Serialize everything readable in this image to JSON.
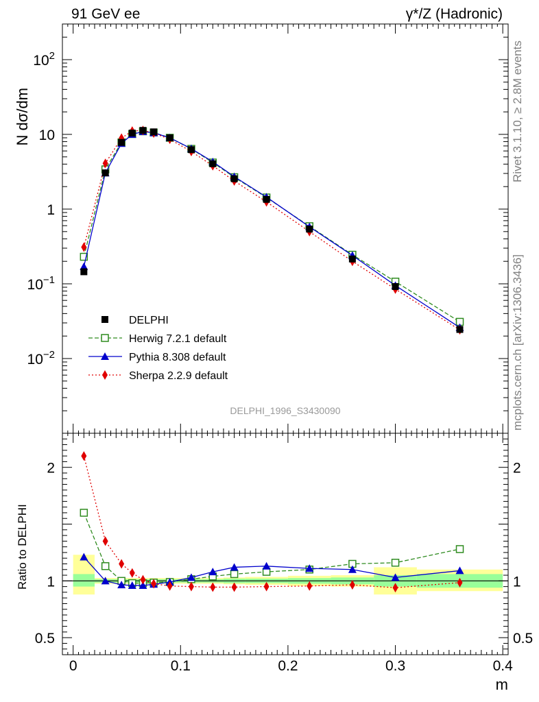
{
  "header": {
    "left": "91 GeV ee",
    "right": "γ*/Z (Hadronic)"
  },
  "side_text": {
    "rivet": "Rivet 3.1.10, ≥ 2.8M events",
    "mcplots": "mcplots.cern.ch [arXiv:1306.3436]"
  },
  "chart_data": {
    "type": "scatter",
    "analysis_label": "DELPHI_1996_S3430090",
    "xlabel": "m",
    "main": {
      "ylabel": "N dσ/dm",
      "yscale": "log",
      "ylim": [
        0.001,
        300
      ],
      "yticks": [
        {
          "value": 0.01,
          "base": "10",
          "exp": "−2"
        },
        {
          "value": 0.1,
          "base": "10",
          "exp": "−1"
        },
        {
          "value": 1,
          "text": "1"
        },
        {
          "value": 10,
          "text": "10"
        },
        {
          "value": 100,
          "base": "10",
          "exp": "2"
        }
      ]
    },
    "ratio": {
      "ylabel": "Ratio to DELPHI",
      "ylim": [
        0.35,
        2.3
      ],
      "yticks": [
        {
          "value": 0.5,
          "text": "0.5"
        },
        {
          "value": 1,
          "text": "1"
        },
        {
          "value": 2,
          "text": "2"
        }
      ],
      "bands": [
        {
          "x0": 0.0,
          "x1": 0.02,
          "inner": [
            0.95,
            1.06
          ],
          "outer": [
            0.88,
            1.23
          ]
        },
        {
          "x0": 0.02,
          "x1": 0.04,
          "inner": [
            0.985,
            1.015
          ],
          "outer": [
            0.975,
            1.025
          ]
        },
        {
          "x0": 0.04,
          "x1": 0.05,
          "inner": [
            0.985,
            1.015
          ],
          "outer": [
            0.975,
            1.025
          ]
        },
        {
          "x0": 0.05,
          "x1": 0.06,
          "inner": [
            0.985,
            1.015
          ],
          "outer": [
            0.975,
            1.025
          ]
        },
        {
          "x0": 0.06,
          "x1": 0.07,
          "inner": [
            0.985,
            1.015
          ],
          "outer": [
            0.975,
            1.025
          ]
        },
        {
          "x0": 0.07,
          "x1": 0.08,
          "inner": [
            0.985,
            1.015
          ],
          "outer": [
            0.975,
            1.025
          ]
        },
        {
          "x0": 0.08,
          "x1": 0.1,
          "inner": [
            0.985,
            1.015
          ],
          "outer": [
            0.975,
            1.025
          ]
        },
        {
          "x0": 0.1,
          "x1": 0.12,
          "inner": [
            0.985,
            1.015
          ],
          "outer": [
            0.975,
            1.025
          ]
        },
        {
          "x0": 0.12,
          "x1": 0.14,
          "inner": [
            0.985,
            1.015
          ],
          "outer": [
            0.975,
            1.025
          ]
        },
        {
          "x0": 0.14,
          "x1": 0.16,
          "inner": [
            0.98,
            1.02
          ],
          "outer": [
            0.97,
            1.03
          ]
        },
        {
          "x0": 0.16,
          "x1": 0.2,
          "inner": [
            0.98,
            1.02
          ],
          "outer": [
            0.965,
            1.035
          ]
        },
        {
          "x0": 0.2,
          "x1": 0.24,
          "inner": [
            0.975,
            1.025
          ],
          "outer": [
            0.955,
            1.045
          ]
        },
        {
          "x0": 0.24,
          "x1": 0.28,
          "inner": [
            0.97,
            1.03
          ],
          "outer": [
            0.95,
            1.05
          ]
        },
        {
          "x0": 0.28,
          "x1": 0.32,
          "inner": [
            0.95,
            1.05
          ],
          "outer": [
            0.88,
            1.12
          ]
        },
        {
          "x0": 0.32,
          "x1": 0.4,
          "inner": [
            0.94,
            1.06
          ],
          "outer": [
            0.91,
            1.1
          ]
        }
      ]
    },
    "xlim": [
      -0.01,
      0.405
    ],
    "xticks": [
      {
        "value": 0,
        "text": "0"
      },
      {
        "value": 0.1,
        "text": "0.1"
      },
      {
        "value": 0.2,
        "text": "0.2"
      },
      {
        "value": 0.3,
        "text": "0.3"
      },
      {
        "value": 0.4,
        "text": "0.4"
      }
    ],
    "x": [
      0.01,
      0.03,
      0.045,
      0.055,
      0.065,
      0.075,
      0.09,
      0.11,
      0.13,
      0.15,
      0.18,
      0.22,
      0.26,
      0.3,
      0.36
    ],
    "series": [
      {
        "name": "DELPHI",
        "color": "#000000",
        "marker": "square-filled",
        "line": "none",
        "values": [
          0.145,
          3.05,
          7.8,
          10.4,
          11.3,
          10.8,
          9.0,
          6.25,
          4.05,
          2.55,
          1.35,
          0.54,
          0.215,
          0.092,
          0.0245
        ],
        "ratio": [
          1,
          1,
          1,
          1,
          1,
          1,
          1,
          1,
          1,
          1,
          1,
          1,
          1,
          1,
          1
        ]
      },
      {
        "name": "Herwig 7.2.1 default",
        "color": "#2e8b1f",
        "marker": "square-open",
        "line": "dashed",
        "values": [
          0.23,
          3.4,
          7.8,
          10.1,
          11.0,
          10.6,
          9.0,
          6.4,
          4.2,
          2.67,
          1.43,
          0.59,
          0.245,
          0.107,
          0.031
        ],
        "ratio": [
          1.6,
          1.13,
          1.0,
          0.98,
          0.98,
          0.985,
          0.99,
          1.015,
          1.04,
          1.06,
          1.08,
          1.1,
          1.15,
          1.16,
          1.28
        ]
      },
      {
        "name": "Pythia 8.308 default",
        "color": "#0000cc",
        "marker": "triangle-filled",
        "line": "solid",
        "values": [
          0.17,
          3.05,
          7.55,
          10.0,
          10.9,
          10.5,
          9.0,
          6.45,
          4.3,
          2.72,
          1.45,
          0.58,
          0.24,
          0.095,
          0.026
        ],
        "ratio": [
          1.21,
          1.0,
          0.965,
          0.96,
          0.96,
          0.97,
          0.99,
          1.03,
          1.08,
          1.12,
          1.13,
          1.11,
          1.1,
          1.03,
          1.09
        ]
      },
      {
        "name": "Sherpa 2.2.9 default",
        "color": "#e00000",
        "marker": "diamond-filled",
        "line": "dotted",
        "values": [
          0.31,
          4.1,
          8.9,
          11.1,
          11.3,
          10.4,
          8.6,
          5.9,
          3.8,
          2.38,
          1.25,
          0.5,
          0.2,
          0.085,
          0.0242
        ],
        "ratio": [
          2.1,
          1.35,
          1.15,
          1.07,
          1.01,
          0.975,
          0.955,
          0.95,
          0.945,
          0.945,
          0.95,
          0.955,
          0.965,
          0.94,
          0.985
        ]
      }
    ]
  }
}
